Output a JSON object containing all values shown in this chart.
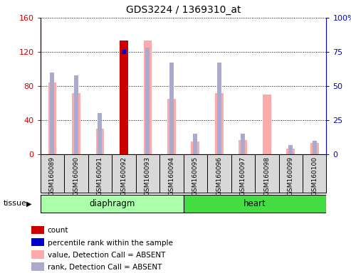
{
  "title": "GDS3224 / 1369310_at",
  "samples": [
    "GSM160089",
    "GSM160090",
    "GSM160091",
    "GSM160092",
    "GSM160093",
    "GSM160094",
    "GSM160095",
    "GSM160096",
    "GSM160097",
    "GSM160098",
    "GSM160099",
    "GSM160100"
  ],
  "value_absent": [
    84,
    72,
    30,
    0,
    133,
    65,
    15,
    72,
    17,
    70,
    7,
    13
  ],
  "rank_absent": [
    60,
    58,
    30,
    0,
    78,
    67,
    15,
    67,
    15,
    0,
    7,
    10
  ],
  "count": [
    0,
    0,
    0,
    133,
    0,
    0,
    0,
    0,
    0,
    0,
    0,
    0
  ],
  "percentile_rank_left": [
    0,
    0,
    0,
    75,
    0,
    0,
    0,
    0,
    0,
    0,
    0,
    0
  ],
  "ylim_left": [
    0,
    160
  ],
  "ylim_right": [
    0,
    100
  ],
  "yticks_left": [
    0,
    40,
    80,
    120,
    160
  ],
  "ytick_labels_left": [
    "0",
    "40",
    "80",
    "120",
    "160"
  ],
  "yticks_right": [
    0,
    25,
    50,
    75,
    100
  ],
  "ytick_labels_right": [
    "0",
    "25",
    "50",
    "75",
    "100%"
  ],
  "color_count": "#cc0000",
  "color_percentile": "#0000cc",
  "color_value_absent": "#ffaaaa",
  "color_rank_absent": "#aaaacc",
  "color_tissue_diaphragm": "#aaffaa",
  "color_tissue_heart": "#44dd44",
  "bar_width": 0.35,
  "rank_bar_width": 0.18,
  "diaphragm_samples": 6,
  "heart_samples": 6,
  "legend_items": [
    {
      "color": "#cc0000",
      "label": "count"
    },
    {
      "color": "#0000cc",
      "label": "percentile rank within the sample"
    },
    {
      "color": "#ffaaaa",
      "label": "value, Detection Call = ABSENT"
    },
    {
      "color": "#aaaacc",
      "label": "rank, Detection Call = ABSENT"
    }
  ]
}
